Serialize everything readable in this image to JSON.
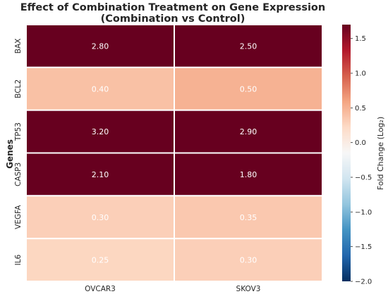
{
  "chart_data": {
    "type": "heatmap",
    "title": "Effect of Combination Treatment on Gene Expression",
    "subtitle": "(Combination vs Control)",
    "xlabel": "",
    "ylabel": "Genes",
    "columns": [
      "OVCAR3",
      "SKOV3"
    ],
    "rows": [
      "BAX",
      "BCL2",
      "TP53",
      "CASP3",
      "VEGFA",
      "IL6"
    ],
    "values": [
      [
        2.8,
        2.5
      ],
      [
        0.4,
        0.5
      ],
      [
        3.2,
        2.9
      ],
      [
        2.1,
        1.8
      ],
      [
        0.3,
        0.35
      ],
      [
        0.25,
        0.3
      ]
    ],
    "value_format": "2 decimals",
    "colormap": "RdBu_r",
    "colorbar": {
      "label": "Fold Change (Log₂)",
      "range": [
        -2.0,
        1.7
      ],
      "ticks": [
        1.5,
        1.0,
        0.5,
        0.0,
        -0.5,
        -1.0,
        -1.5,
        -2.0
      ],
      "tick_labels": [
        "1.5",
        "1.0",
        "0.5",
        "0.0",
        "−0.5",
        "−1.0",
        "−1.5",
        "−2.0"
      ]
    },
    "colors": {
      "text": "#262626",
      "annotation_text": "#ffffff",
      "grid_lines": "#ffffff",
      "palette": [
        "#053061",
        "#2166ac",
        "#4393c3",
        "#92c5de",
        "#d1e5f0",
        "#f7f7f7",
        "#fddbc7",
        "#f4a582",
        "#d6604d",
        "#b2182b",
        "#67001f"
      ]
    }
  }
}
